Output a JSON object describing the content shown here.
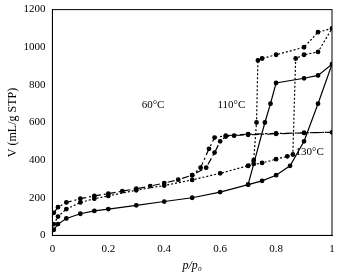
{
  "chart_data": {
    "type": "line",
    "x_label": "p/p₀",
    "y_label": "V (mL/g STP)",
    "xlim": [
      0,
      1
    ],
    "xticks": [
      0,
      0.2,
      0.4,
      0.6,
      0.8,
      1
    ],
    "ylim": [
      0,
      1200
    ],
    "yticks": [
      0,
      200,
      400,
      600,
      800,
      1000,
      1200
    ],
    "grid": false,
    "series": [
      {
        "name": "60°C",
        "color": "#000000",
        "line_style": "dashdot",
        "marker": "circle",
        "x": [
          0.005,
          0.02,
          0.05,
          0.1,
          0.15,
          0.2,
          0.25,
          0.3,
          0.35,
          0.4,
          0.45,
          0.5,
          0.55,
          0.58,
          0.6,
          0.62,
          0.65,
          0.7,
          0.8,
          0.9,
          1.0,
          0.9,
          0.8,
          0.7,
          0.62,
          0.58,
          0.56,
          0.53,
          0.5
        ],
        "values": [
          120,
          150,
          175,
          195,
          210,
          222,
          235,
          248,
          262,
          278,
          296,
          320,
          360,
          440,
          500,
          525,
          530,
          535,
          540,
          545,
          548,
          545,
          542,
          538,
          530,
          520,
          460,
          360,
          320
        ]
      },
      {
        "name": "110°C",
        "color": "#000000",
        "line_style": "dotted",
        "marker": "circle",
        "x": [
          0.005,
          0.02,
          0.05,
          0.1,
          0.15,
          0.2,
          0.3,
          0.4,
          0.5,
          0.6,
          0.7,
          0.75,
          0.8,
          0.84,
          0.86,
          0.87,
          0.9,
          0.95,
          1.0,
          0.95,
          0.9,
          0.8,
          0.75,
          0.735,
          0.73,
          0.72,
          0.7
        ],
        "values": [
          60,
          100,
          140,
          175,
          195,
          210,
          240,
          265,
          295,
          330,
          370,
          385,
          405,
          420,
          430,
          940,
          960,
          975,
          1100,
          1080,
          1000,
          960,
          940,
          930,
          600,
          400,
          370
        ]
      },
      {
        "name": "130°C",
        "color": "#000000",
        "line_style": "solid",
        "marker": "circle",
        "x": [
          0.005,
          0.02,
          0.05,
          0.1,
          0.15,
          0.2,
          0.3,
          0.4,
          0.5,
          0.6,
          0.7,
          0.75,
          0.8,
          0.85,
          0.9,
          0.95,
          1.0,
          0.95,
          0.9,
          0.8,
          0.78,
          0.76,
          0.72,
          0.7
        ],
        "values": [
          30,
          60,
          90,
          115,
          130,
          140,
          160,
          180,
          200,
          230,
          270,
          290,
          320,
          370,
          500,
          700,
          910,
          850,
          835,
          810,
          700,
          600,
          380,
          270
        ]
      }
    ],
    "annotations": [
      {
        "text": "60°C",
        "x": 0.36,
        "y": 690
      },
      {
        "text": "110°C",
        "x": 0.64,
        "y": 690
      },
      {
        "text": "130°C",
        "x": 0.92,
        "y": 440
      }
    ]
  }
}
